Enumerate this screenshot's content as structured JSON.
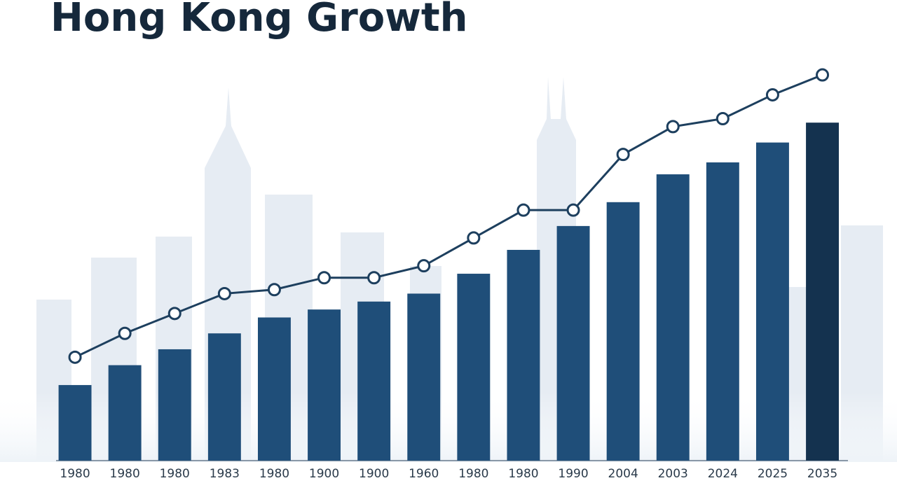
{
  "chart_data": {
    "type": "bar",
    "title": "Hong Kong Growth",
    "categories": [
      "1980",
      "1980",
      "1980",
      "1983",
      "1980",
      "1900",
      "1900",
      "1960",
      "1980",
      "1980",
      "1990",
      "2004",
      "2003",
      "2024",
      "2025",
      "2035"
    ],
    "series": [
      {
        "type": "bar",
        "color": "#1f4e79",
        "highlight_color": "#14324f",
        "values": [
          19,
          24,
          28,
          32,
          36,
          38,
          40,
          42,
          47,
          53,
          59,
          65,
          72,
          75,
          80,
          85
        ]
      },
      {
        "type": "line",
        "color": "#1d3f5e",
        "values": [
          26,
          32,
          37,
          42,
          43,
          46,
          46,
          49,
          56,
          63,
          63,
          77,
          84,
          86,
          92,
          97
        ]
      }
    ],
    "ylim": [
      0,
      100
    ]
  }
}
